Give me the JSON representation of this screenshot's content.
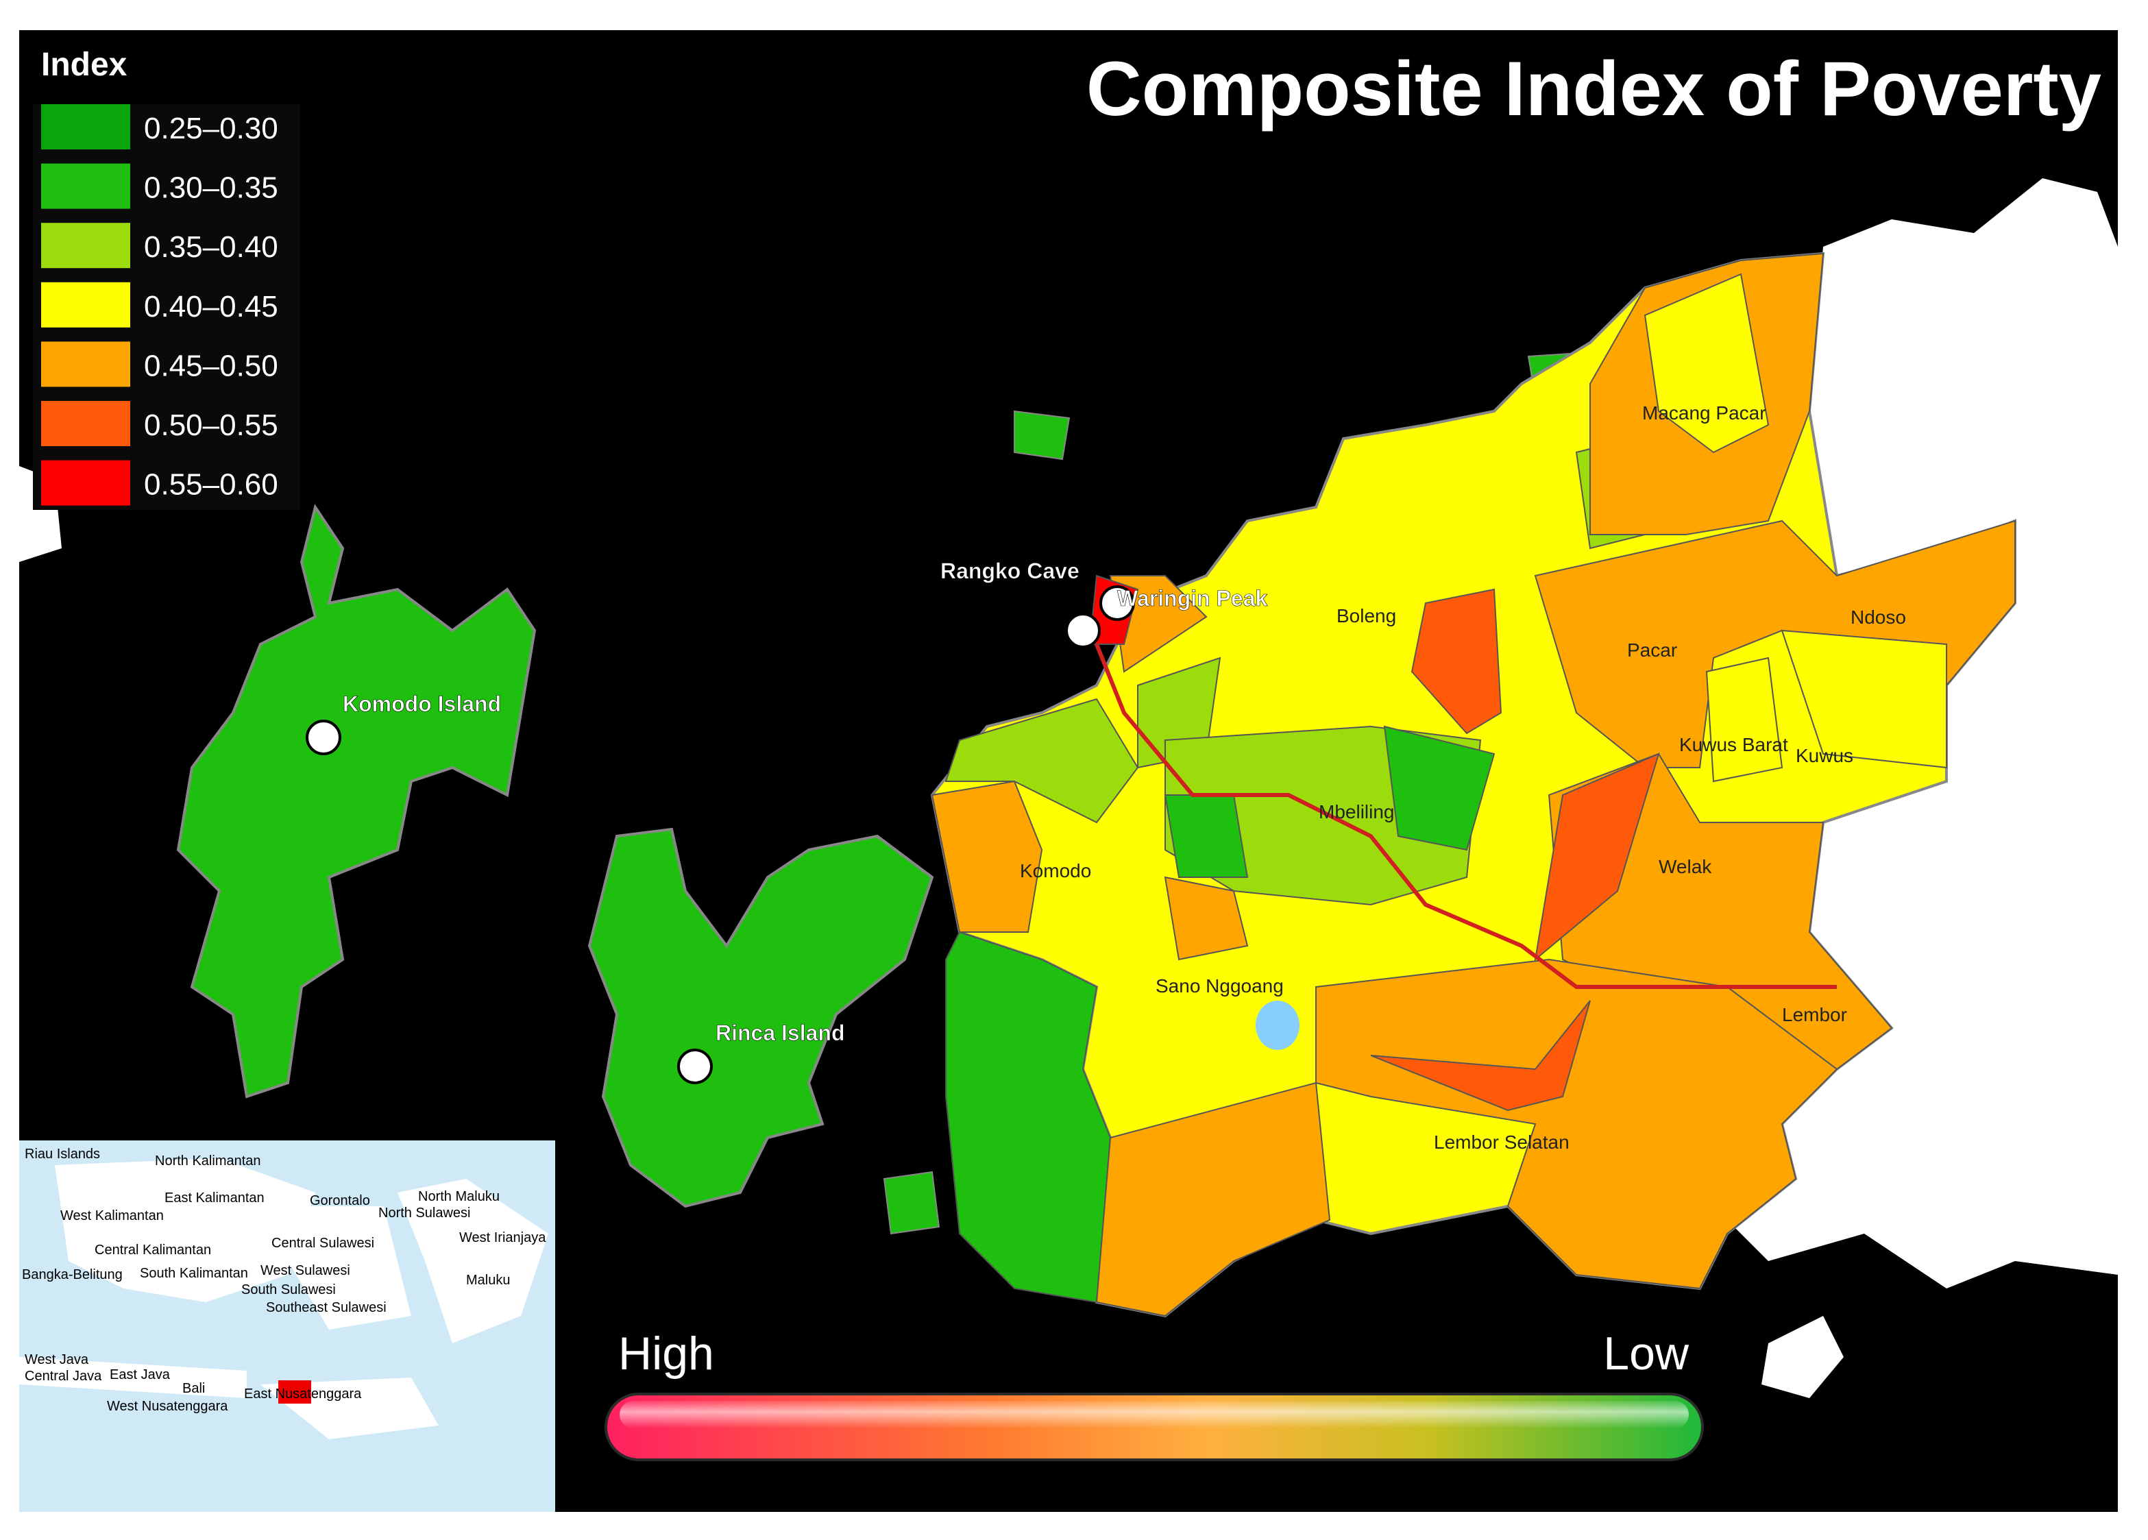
{
  "title": "Composite Index of Poverty",
  "legend": {
    "title": "Index",
    "items": [
      {
        "label": "0.25–0.30",
        "color": "#0aa50a"
      },
      {
        "label": "0.30–0.35",
        "color": "#1fbf0f"
      },
      {
        "label": "0.35–0.40",
        "color": "#9ddc0c"
      },
      {
        "label": "0.40–0.45",
        "color": "#ffff00"
      },
      {
        "label": "0.45–0.50",
        "color": "#ffa500"
      },
      {
        "label": "0.50–0.55",
        "color": "#ff5a0a"
      },
      {
        "label": "0.55–0.60",
        "color": "#ff0000"
      }
    ]
  },
  "places": [
    "Komodo Island",
    "Rinca Island",
    "Rangko Cave",
    "Waringin Peak",
    "Boleng",
    "Macang Pacar",
    "Ndoso",
    "Pacar",
    "Kuwus Barat",
    "Kuwus",
    "Mbeliling",
    "Komodo",
    "Welak",
    "Sano Nggoang",
    "Lembor",
    "Lembor Selatan"
  ],
  "inset_labels": [
    "Riau Islands",
    "North Kalimantan",
    "East Kalimantan",
    "West Kalimantan",
    "Gorontalo",
    "North Maluku",
    "North Sulawesi",
    "Central Kalimantan",
    "Central Sulawesi",
    "West Irianjaya",
    "Bangka-Belitung",
    "South Kalimantan",
    "West Sulawesi",
    "South Sulawesi",
    "Maluku",
    "Southeast Sulawesi",
    "West Java",
    "Central Java",
    "East Java",
    "Bali",
    "East Nusatenggara",
    "West Nusatenggara"
  ],
  "scale": {
    "high": "High",
    "low": "Low"
  }
}
